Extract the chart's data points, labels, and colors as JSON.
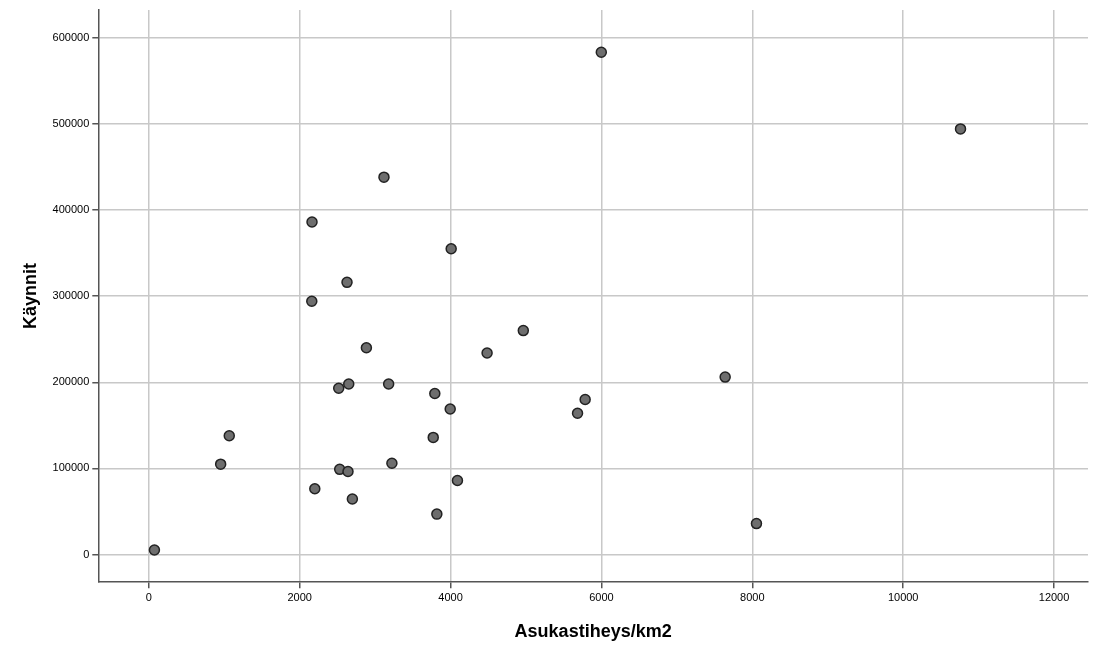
{
  "chart_data": {
    "type": "scatter",
    "xlabel": "Asukastiheys/km2",
    "ylabel": "Käynnit",
    "x": [
      3117,
      2163,
      4008,
      2627,
      2160,
      4964,
      2884,
      4484,
      2517,
      2650,
      3179,
      3791,
      3995,
      1066,
      3770,
      952,
      2530,
      2640,
      3222,
      4091,
      2200,
      2698,
      3818,
      74,
      5998,
      10760,
      7640,
      5784,
      5683,
      8055
    ],
    "values": [
      438000,
      386000,
      355000,
      316000,
      294000,
      260000,
      240000,
      234000,
      193000,
      198000,
      198000,
      187000,
      169000,
      138000,
      136000,
      105000,
      99000,
      96500,
      106000,
      86000,
      76500,
      64600,
      47000,
      5400,
      583000,
      494000,
      206000,
      180000,
      164000,
      36000
    ],
    "color": "#6e6e6e",
    "marker": "circle",
    "grid": true,
    "legend": false,
    "xlim": [
      -670,
      12450
    ],
    "xticks": [
      0,
      2000,
      4000,
      6000,
      8000,
      10000,
      12000
    ],
    "ylim": [
      -32000,
      632000
    ],
    "yticks": [
      0,
      100000,
      200000,
      300000,
      400000,
      500000,
      600000
    ]
  }
}
